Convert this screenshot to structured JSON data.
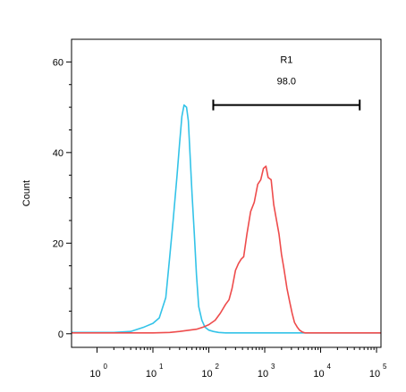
{
  "chart_data": {
    "type": "line",
    "title": "",
    "xlabel": "",
    "ylabel": "Count",
    "x_scale": "log",
    "xlim": [
      0.35,
      120000
    ],
    "ylim": [
      -3,
      65
    ],
    "y_ticks": [
      0,
      20,
      40,
      60
    ],
    "x_ticks": [
      {
        "value": 1,
        "base": "10",
        "exp": "0"
      },
      {
        "value": 10,
        "base": "10",
        "exp": "1"
      },
      {
        "value": 100,
        "base": "10",
        "exp": "2"
      },
      {
        "value": 1000,
        "base": "10",
        "exp": "3"
      },
      {
        "value": 10000,
        "base": "10",
        "exp": "4"
      },
      {
        "value": 100000,
        "base": "10",
        "exp": "5"
      }
    ],
    "grid": false,
    "series": [
      {
        "color": "#33c3e8",
        "x": [
          0.35,
          1,
          2,
          4,
          7,
          10,
          13,
          17,
          20,
          23,
          27,
          30,
          33,
          36,
          40,
          43,
          46,
          50,
          55,
          60,
          66,
          75,
          85,
          100,
          120,
          150,
          200,
          300,
          1000,
          10000,
          120000
        ],
        "y": [
          0.3,
          0.3,
          0.3,
          0.5,
          1.5,
          2.3,
          3.5,
          8,
          17,
          25,
          35,
          42,
          48,
          50.5,
          50,
          47,
          40,
          31,
          22,
          13,
          6,
          3,
          1.5,
          0.8,
          0.5,
          0.3,
          0.2,
          0.2,
          0.2,
          0.2,
          0.2
        ]
      },
      {
        "color": "#ee4c4c",
        "x": [
          0.35,
          10,
          20,
          30,
          60,
          80,
          100,
          130,
          160,
          200,
          230,
          260,
          300,
          340,
          380,
          420,
          480,
          560,
          650,
          750,
          850,
          950,
          1050,
          1150,
          1300,
          1450,
          1600,
          1800,
          2000,
          2200,
          2500,
          2800,
          3100,
          3400,
          3800,
          4200,
          4700,
          5200,
          6000,
          8000,
          12000,
          120000
        ],
        "y": [
          0.2,
          0.2,
          0.3,
          0.5,
          1,
          1.5,
          2,
          3,
          4.5,
          6.5,
          7.5,
          10,
          14,
          15.5,
          16.5,
          17,
          22,
          27,
          29,
          33,
          34,
          36.5,
          37,
          34.5,
          34,
          28.5,
          25.5,
          22,
          17.5,
          14.5,
          10,
          7,
          4.5,
          2.5,
          1.5,
          0.8,
          0.4,
          0.2,
          0.2,
          0.2,
          0.2,
          0.2
        ]
      }
    ],
    "gate": {
      "name": "R1",
      "value": "98.0",
      "x_start": 120,
      "x_end": 50000,
      "y_level": 50.5
    }
  }
}
